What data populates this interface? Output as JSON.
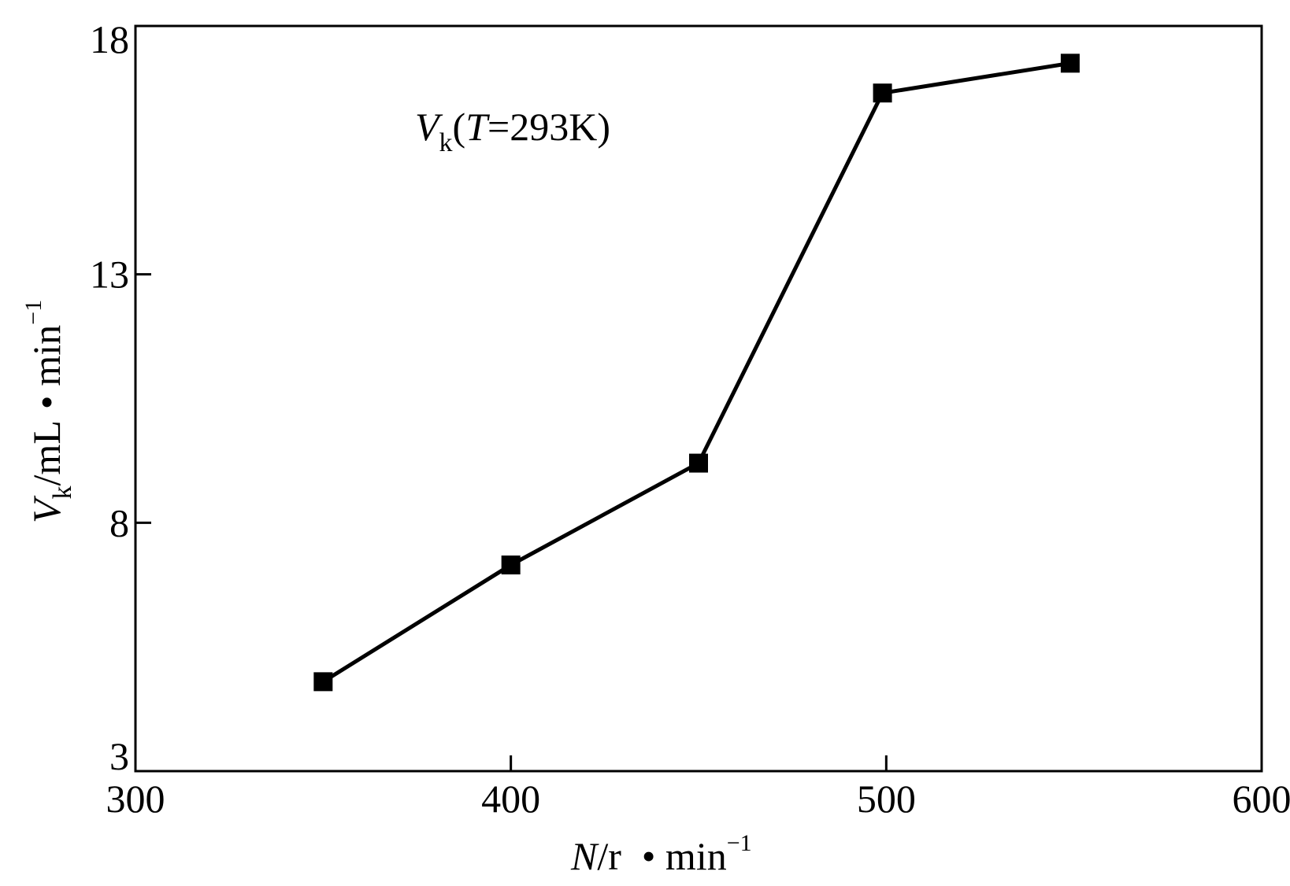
{
  "chart_data": {
    "type": "line",
    "x": [
      350,
      400,
      450,
      499,
      549
    ],
    "series": [
      {
        "values": [
          4.8,
          7.15,
          9.2,
          16.65,
          17.25
        ],
        "marker": "filled-square",
        "color": "#000000"
      }
    ],
    "xlim": [
      300,
      600
    ],
    "ylim": [
      3,
      18
    ],
    "xticks": [
      300,
      400,
      500,
      600
    ],
    "yticks": [
      3,
      8,
      13,
      18
    ],
    "xtick_labels": [
      "300",
      "400",
      "500",
      "600"
    ],
    "ytick_labels": [
      "3",
      "8",
      "13",
      "18"
    ],
    "xlabel": {
      "var": "N",
      "unit": "/r",
      "sep": "•",
      "unit2": " min",
      "exp": "−1"
    },
    "ylabel": {
      "var": "V",
      "sub": "k",
      "unit": "/mL",
      "sep": "•",
      "unit2": "min",
      "exp": "−1"
    },
    "annotation": {
      "var": "V",
      "sub": "k",
      "open": "(",
      "tvar": "T",
      "rest": "=293K)"
    },
    "grid": false,
    "legend": "none"
  }
}
